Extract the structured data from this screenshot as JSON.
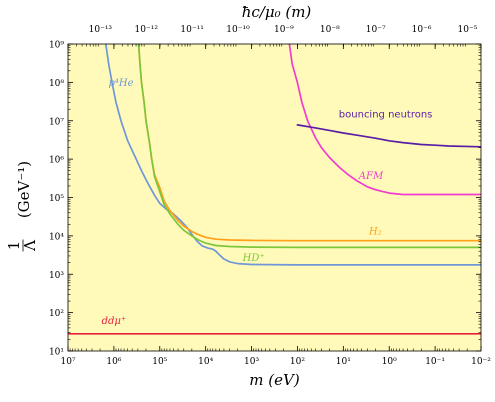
{
  "chart_data": {
    "type": "line",
    "background_color": "#FFFAB9",
    "x_axis": {
      "label_bottom": "m  (eV)",
      "scale": "log",
      "reversed": true,
      "range": [
        10000000.0,
        0.01
      ],
      "ticks": [
        {
          "value": 10000000.0,
          "label": "10⁷"
        },
        {
          "value": 1000000.0,
          "label": "10⁶"
        },
        {
          "value": 100000.0,
          "label": "10⁵"
        },
        {
          "value": 10000.0,
          "label": "10⁴"
        },
        {
          "value": 1000.0,
          "label": "10³"
        },
        {
          "value": 100.0,
          "label": "10²"
        },
        {
          "value": 10.0,
          "label": "10¹"
        },
        {
          "value": 1.0,
          "label": "10⁰"
        },
        {
          "value": 0.1,
          "label": "10⁻¹"
        },
        {
          "value": 0.01,
          "label": "10⁻²"
        }
      ]
    },
    "x_axis_top": {
      "label": "ħc/μ₀ (m)",
      "scale": "log",
      "range": [
        1.973e-14,
        1.973e-05
      ],
      "ticks": [
        {
          "value": 1e-13,
          "label": "10⁻¹³"
        },
        {
          "value": 1e-12,
          "label": "10⁻¹²"
        },
        {
          "value": 1e-11,
          "label": "10⁻¹¹"
        },
        {
          "value": 1e-10,
          "label": "10⁻¹⁰"
        },
        {
          "value": 1e-09,
          "label": "10⁻⁹"
        },
        {
          "value": 1e-08,
          "label": "10⁻⁸"
        },
        {
          "value": 1e-07,
          "label": "10⁻⁷"
        },
        {
          "value": 1e-06,
          "label": "10⁻⁶"
        },
        {
          "value": 1e-05,
          "label": "10⁻⁵"
        }
      ]
    },
    "y_axis": {
      "label_numerator": "1",
      "label_denominator": "Λ",
      "label_units": "(GeV⁻¹)",
      "scale": "log",
      "range": [
        10.0,
        1000000000.0
      ],
      "ticks": [
        {
          "value": 10.0,
          "label": "10¹"
        },
        {
          "value": 100.0,
          "label": "10²"
        },
        {
          "value": 1000.0,
          "label": "10³"
        },
        {
          "value": 10000.0,
          "label": "10⁴"
        },
        {
          "value": 100000.0,
          "label": "10⁵"
        },
        {
          "value": 1000000.0,
          "label": "10⁶"
        },
        {
          "value": 10000000.0,
          "label": "10⁷"
        },
        {
          "value": 100000000.0,
          "label": "10⁸"
        },
        {
          "value": 1000000000.0,
          "label": "10⁹"
        }
      ]
    },
    "series": [
      {
        "name": "p⁴He",
        "color": "#6F96D8",
        "label_at": {
          "x": 700000.0,
          "y": 80000000.0
        },
        "label_style": "italic",
        "points": [
          [
            1500000.0,
            1000000000.0
          ],
          [
            1300000.0,
            300000000.0
          ],
          [
            1100000.0,
            100000000.0
          ],
          [
            900000.0,
            30000000.0
          ],
          [
            700000.0,
            10000000.0
          ],
          [
            500000.0,
            3000000.0
          ],
          [
            350000.0,
            1200000.0
          ],
          [
            250000.0,
            500000.0
          ],
          [
            180000.0,
            230000.0
          ],
          [
            130000.0,
            115000.0
          ],
          [
            100000.0,
            70000.0
          ],
          [
            70000.0,
            48000.0
          ],
          [
            50000.0,
            37000.0
          ],
          [
            35000.0,
            25000.0
          ],
          [
            25000.0,
            16000.0
          ],
          [
            19000.0,
            10000.0
          ],
          [
            15000.0,
            7000.0
          ],
          [
            12000.0,
            5500.0
          ],
          [
            9000.0,
            4800.0
          ],
          [
            7000.0,
            4500.0
          ],
          [
            6000.0,
            4000.0
          ],
          [
            5000.0,
            3200.0
          ],
          [
            4000.0,
            2500.0
          ],
          [
            3000.0,
            2100.0
          ],
          [
            2000.0,
            1900.0
          ],
          [
            1000.0,
            1800.0
          ],
          [
            100.0,
            1750.0
          ],
          [
            10.0,
            1750.0
          ],
          [
            1,
            1750.0
          ],
          [
            0.1,
            1750.0
          ],
          [
            0.01,
            1750.0
          ]
        ]
      },
      {
        "name": "H₂",
        "color": "#FF9F1A",
        "label_at": {
          "x": 2.0,
          "y": 11000.0
        },
        "label_style": "italic",
        "points": [
          [
            290000.0,
            1000000000.0
          ],
          [
            270000.0,
            300000000.0
          ],
          [
            250000.0,
            100000000.0
          ],
          [
            220000.0,
            30000000.0
          ],
          [
            200000.0,
            10000000.0
          ],
          [
            170000.0,
            3000000.0
          ],
          [
            150000.0,
            1000000.0
          ],
          [
            130000.0,
            400000.0
          ],
          [
            100000.0,
            180000.0
          ],
          [
            80000.0,
            80000.0
          ],
          [
            60000.0,
            45000.0
          ],
          [
            40000.0,
            25000.0
          ],
          [
            30000.0,
            18000.0
          ],
          [
            20000.0,
            13000.0
          ],
          [
            15000.0,
            11000.0
          ],
          [
            10000.0,
            9200.0
          ],
          [
            6000.0,
            8200.0
          ],
          [
            3000.0,
            7800.0
          ],
          [
            1000.0,
            7600.0
          ],
          [
            100.0,
            7500.0
          ],
          [
            10.0,
            7500.0
          ],
          [
            1,
            7500.0
          ],
          [
            0.1,
            7500.0
          ],
          [
            0.01,
            7500.0
          ]
        ]
      },
      {
        "name": "HD⁺",
        "color": "#7DC63B",
        "label_at": {
          "x": 900.0,
          "y": 2200.0
        },
        "label_style": "italic",
        "points": [
          [
            290000.0,
            1000000000.0
          ],
          [
            270000.0,
            300000000.0
          ],
          [
            250000.0,
            100000000.0
          ],
          [
            220000.0,
            30000000.0
          ],
          [
            200000.0,
            10000000.0
          ],
          [
            170000.0,
            3000000.0
          ],
          [
            150000.0,
            1000000.0
          ],
          [
            130000.0,
            350000.0
          ],
          [
            100000.0,
            140000.0
          ],
          [
            80000.0,
            65000.0
          ],
          [
            60000.0,
            37000.0
          ],
          [
            40000.0,
            20000.0
          ],
          [
            30000.0,
            14000.0
          ],
          [
            20000.0,
            10000.0
          ],
          [
            15000.0,
            8000.0
          ],
          [
            10000.0,
            6500.0
          ],
          [
            6000.0,
            5600.0
          ],
          [
            3000.0,
            5300.0
          ],
          [
            1000.0,
            5100.0
          ],
          [
            100.0,
            5000.0
          ],
          [
            10.0,
            5000.0
          ],
          [
            1,
            5000.0
          ],
          [
            0.1,
            5000.0
          ],
          [
            0.01,
            5000.0
          ]
        ]
      },
      {
        "name": "AFM",
        "color": "#F23CD0",
        "label_at": {
          "x": 2.5,
          "y": 300000.0
        },
        "label_style": "italic",
        "points": [
          [
            150.0,
            1000000000.0
          ],
          [
            130.0,
            300000000.0
          ],
          [
            100.0,
            100000000.0
          ],
          [
            80.0,
            30000000.0
          ],
          [
            60.0,
            10000000.0
          ],
          [
            40.0,
            3500000.0
          ],
          [
            30.0,
            2000000.0
          ],
          [
            20.0,
            1100000.0
          ],
          [
            12.0,
            600000.0
          ],
          [
            8,
            400000.0
          ],
          [
            5,
            270000.0
          ],
          [
            3,
            190000.0
          ],
          [
            2,
            160000.0
          ],
          [
            1,
            130000.0
          ],
          [
            0.5,
            120000.0
          ],
          [
            0.2,
            120000.0
          ],
          [
            0.1,
            120000.0
          ],
          [
            0.01,
            120000.0
          ]
        ]
      },
      {
        "name": "bouncing neutrons",
        "color": "#5A1EA6",
        "label_at": {
          "x": 1.2,
          "y": 12000000.0
        },
        "label_style": "plain",
        "points": [
          [
            100.0,
            7800000.0
          ],
          [
            50.0,
            6800000.0
          ],
          [
            20.0,
            5600000.0
          ],
          [
            10.0,
            4800000.0
          ],
          [
            5,
            4200000.0
          ],
          [
            2,
            3500000.0
          ],
          [
            1,
            3000000.0
          ],
          [
            0.5,
            2700000.0
          ],
          [
            0.2,
            2400000.0
          ],
          [
            0.1,
            2300000.0
          ],
          [
            0.05,
            2200000.0
          ],
          [
            0.01,
            2100000.0
          ]
        ]
      },
      {
        "name": "ddμ⁺",
        "color": "#E8203E",
        "label_at": {
          "x": 1000000.0,
          "y": 50.0
        },
        "label_style": "italic",
        "points": [
          [
            10000000.0,
            28
          ],
          [
            0.01,
            28
          ]
        ]
      }
    ]
  }
}
